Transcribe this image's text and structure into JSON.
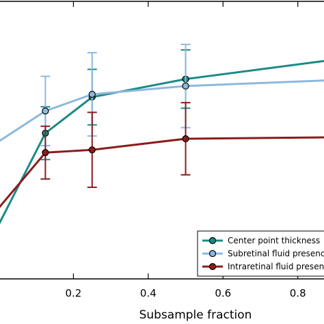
{
  "chart_data": {
    "type": "line",
    "xlabel": "Subsample fraction",
    "ylabel": "",
    "title": "",
    "xlim": [
      0.0,
      0.87
    ],
    "ylim": [
      0.0,
      1.0
    ],
    "x_ticks": [
      0.2,
      0.4,
      0.6,
      0.8
    ],
    "x_tick_labels": [
      "0.2",
      "0.4",
      "0.6",
      "0.8"
    ],
    "grid": false,
    "legend_position": "bottom-right",
    "series": [
      {
        "name": "Center point thickness",
        "color": "#1a8a85",
        "x": [
          0.0,
          0.125,
          0.25,
          0.5,
          0.87
        ],
        "y": [
          0.195,
          0.525,
          0.655,
          0.72,
          0.785
        ],
        "err": [
          0.0,
          0.095,
          0.1,
          0.105,
          0.0
        ]
      },
      {
        "name": "Subretinal fluid presence",
        "color": "#8db8de",
        "x": [
          0.0,
          0.125,
          0.25,
          0.5,
          0.87
        ],
        "y": [
          0.495,
          0.605,
          0.665,
          0.695,
          0.715
        ],
        "err": [
          0.0,
          0.125,
          0.15,
          0.15,
          0.0
        ]
      },
      {
        "name": "Intraretinal fluid presence",
        "color": "#8c1b1b",
        "x": [
          0.0,
          0.125,
          0.25,
          0.5,
          0.87
        ],
        "y": [
          0.255,
          0.455,
          0.465,
          0.505,
          0.51
        ],
        "err": [
          0.0,
          0.095,
          0.135,
          0.13,
          0.0
        ]
      }
    ]
  }
}
